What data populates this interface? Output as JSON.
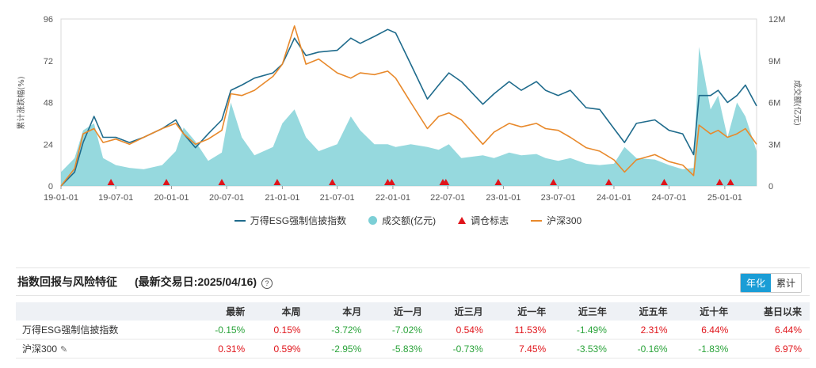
{
  "chart_data": {
    "type": "line",
    "x_ticks": [
      "19-01-01",
      "19-07-01",
      "20-01-01",
      "20-07-01",
      "21-01-01",
      "21-07-01",
      "22-01-01",
      "22-07-01",
      "23-01-01",
      "23-07-01",
      "24-01-01",
      "24-07-01",
      "25-01-01"
    ],
    "y_left_ticks": [
      "0",
      "24",
      "48",
      "72",
      "96"
    ],
    "y_left_range": [
      0,
      96
    ],
    "y_left_label": "累计涨跌幅(%)",
    "y_right_ticks": [
      "0",
      "3M",
      "6M",
      "9M",
      "12M"
    ],
    "y_right_range": [
      0,
      12
    ],
    "y_right_label": "成交额(亿元)",
    "x_range": [
      "2019-01-01",
      "2025-04-16"
    ],
    "series": [
      {
        "name": "万得ESG强制信披指数",
        "kind": "line",
        "color": "#1f6b8c",
        "points": [
          [
            "2019-01-01",
            0
          ],
          [
            "2019-02-15",
            8
          ],
          [
            "2019-03-15",
            25
          ],
          [
            "2019-04-20",
            40
          ],
          [
            "2019-05-20",
            28
          ],
          [
            "2019-07-01",
            28
          ],
          [
            "2019-08-15",
            25
          ],
          [
            "2019-10-01",
            28
          ],
          [
            "2019-12-01",
            33
          ],
          [
            "2020-01-15",
            38
          ],
          [
            "2020-02-10",
            30
          ],
          [
            "2020-03-20",
            22
          ],
          [
            "2020-05-01",
            30
          ],
          [
            "2020-06-15",
            38
          ],
          [
            "2020-07-15",
            55
          ],
          [
            "2020-08-20",
            58
          ],
          [
            "2020-10-01",
            62
          ],
          [
            "2020-12-01",
            65
          ],
          [
            "2021-01-01",
            70
          ],
          [
            "2021-02-10",
            85
          ],
          [
            "2021-03-20",
            75
          ],
          [
            "2021-05-01",
            77
          ],
          [
            "2021-07-01",
            78
          ],
          [
            "2021-08-15",
            85
          ],
          [
            "2021-09-15",
            82
          ],
          [
            "2021-11-01",
            86
          ],
          [
            "2021-12-15",
            90
          ],
          [
            "2022-01-10",
            88
          ],
          [
            "2022-03-01",
            70
          ],
          [
            "2022-04-25",
            50
          ],
          [
            "2022-06-01",
            58
          ],
          [
            "2022-07-05",
            65
          ],
          [
            "2022-08-15",
            60
          ],
          [
            "2022-10-25",
            47
          ],
          [
            "2022-12-01",
            53
          ],
          [
            "2023-01-20",
            60
          ],
          [
            "2023-03-01",
            55
          ],
          [
            "2023-04-20",
            60
          ],
          [
            "2023-05-20",
            55
          ],
          [
            "2023-07-01",
            52
          ],
          [
            "2023-08-10",
            55
          ],
          [
            "2023-10-01",
            45
          ],
          [
            "2023-11-15",
            44
          ],
          [
            "2024-01-01",
            33
          ],
          [
            "2024-02-05",
            25
          ],
          [
            "2024-03-15",
            36
          ],
          [
            "2024-05-15",
            38
          ],
          [
            "2024-07-01",
            32
          ],
          [
            "2024-08-15",
            30
          ],
          [
            "2024-09-20",
            18
          ],
          [
            "2024-10-08",
            52
          ],
          [
            "2024-11-15",
            52
          ],
          [
            "2024-12-10",
            55
          ],
          [
            "2025-01-10",
            48
          ],
          [
            "2025-02-10",
            52
          ],
          [
            "2025-03-10",
            58
          ],
          [
            "2025-04-16",
            46
          ]
        ]
      },
      {
        "name": "沪深300",
        "kind": "line",
        "color": "#e8892b",
        "points": [
          [
            "2019-01-01",
            0
          ],
          [
            "2019-02-15",
            10
          ],
          [
            "2019-03-15",
            30
          ],
          [
            "2019-04-20",
            33
          ],
          [
            "2019-05-20",
            25
          ],
          [
            "2019-07-01",
            27
          ],
          [
            "2019-08-15",
            24
          ],
          [
            "2019-10-01",
            28
          ],
          [
            "2019-12-01",
            33
          ],
          [
            "2020-01-15",
            36
          ],
          [
            "2020-02-10",
            30
          ],
          [
            "2020-03-20",
            24
          ],
          [
            "2020-05-01",
            27
          ],
          [
            "2020-06-15",
            32
          ],
          [
            "2020-07-15",
            53
          ],
          [
            "2020-08-20",
            52
          ],
          [
            "2020-10-01",
            55
          ],
          [
            "2020-12-01",
            63
          ],
          [
            "2021-01-01",
            70
          ],
          [
            "2021-02-10",
            92
          ],
          [
            "2021-03-20",
            70
          ],
          [
            "2021-05-01",
            73
          ],
          [
            "2021-07-01",
            65
          ],
          [
            "2021-08-15",
            62
          ],
          [
            "2021-09-15",
            65
          ],
          [
            "2021-11-01",
            64
          ],
          [
            "2021-12-15",
            66
          ],
          [
            "2022-01-10",
            62
          ],
          [
            "2022-03-01",
            48
          ],
          [
            "2022-04-25",
            33
          ],
          [
            "2022-06-01",
            40
          ],
          [
            "2022-07-05",
            42
          ],
          [
            "2022-08-15",
            38
          ],
          [
            "2022-10-25",
            24
          ],
          [
            "2022-12-01",
            31
          ],
          [
            "2023-01-20",
            36
          ],
          [
            "2023-03-01",
            34
          ],
          [
            "2023-04-20",
            36
          ],
          [
            "2023-05-20",
            33
          ],
          [
            "2023-07-01",
            32
          ],
          [
            "2023-08-10",
            28
          ],
          [
            "2023-10-01",
            22
          ],
          [
            "2023-11-15",
            20
          ],
          [
            "2024-01-01",
            15
          ],
          [
            "2024-02-05",
            8
          ],
          [
            "2024-03-15",
            15
          ],
          [
            "2024-05-15",
            18
          ],
          [
            "2024-07-01",
            14
          ],
          [
            "2024-08-15",
            12
          ],
          [
            "2024-09-20",
            6
          ],
          [
            "2024-10-08",
            35
          ],
          [
            "2024-11-15",
            30
          ],
          [
            "2024-12-10",
            32
          ],
          [
            "2025-01-10",
            28
          ],
          [
            "2025-02-10",
            30
          ],
          [
            "2025-03-10",
            33
          ],
          [
            "2025-04-16",
            24
          ]
        ]
      },
      {
        "name": "成交额(亿元)",
        "kind": "area",
        "axis": "right",
        "color": "#7ccfd6",
        "points": [
          [
            "2019-01-01",
            1.0
          ],
          [
            "2019-02-15",
            2.0
          ],
          [
            "2019-03-15",
            4.0
          ],
          [
            "2019-04-20",
            4.5
          ],
          [
            "2019-05-20",
            2.0
          ],
          [
            "2019-07-01",
            1.5
          ],
          [
            "2019-08-15",
            1.3
          ],
          [
            "2019-10-01",
            1.2
          ],
          [
            "2019-12-01",
            1.5
          ],
          [
            "2020-01-15",
            2.5
          ],
          [
            "2020-02-10",
            4.2
          ],
          [
            "2020-03-20",
            3.2
          ],
          [
            "2020-05-01",
            1.8
          ],
          [
            "2020-06-15",
            2.4
          ],
          [
            "2020-07-15",
            6.0
          ],
          [
            "2020-08-20",
            3.5
          ],
          [
            "2020-10-01",
            2.2
          ],
          [
            "2020-12-01",
            2.8
          ],
          [
            "2021-01-01",
            4.5
          ],
          [
            "2021-02-10",
            5.5
          ],
          [
            "2021-03-20",
            3.5
          ],
          [
            "2021-05-01",
            2.5
          ],
          [
            "2021-07-01",
            3.0
          ],
          [
            "2021-08-15",
            5.0
          ],
          [
            "2021-09-15",
            4.0
          ],
          [
            "2021-11-01",
            3.0
          ],
          [
            "2021-12-15",
            3.0
          ],
          [
            "2022-01-10",
            2.8
          ],
          [
            "2022-03-01",
            3.0
          ],
          [
            "2022-04-25",
            2.8
          ],
          [
            "2022-06-01",
            2.6
          ],
          [
            "2022-07-05",
            3.0
          ],
          [
            "2022-08-15",
            2.0
          ],
          [
            "2022-10-25",
            2.2
          ],
          [
            "2022-12-01",
            2.0
          ],
          [
            "2023-01-20",
            2.4
          ],
          [
            "2023-03-01",
            2.2
          ],
          [
            "2023-04-20",
            2.3
          ],
          [
            "2023-05-20",
            2.0
          ],
          [
            "2023-07-01",
            1.8
          ],
          [
            "2023-08-10",
            2.0
          ],
          [
            "2023-10-01",
            1.6
          ],
          [
            "2023-11-15",
            1.5
          ],
          [
            "2024-01-01",
            1.6
          ],
          [
            "2024-02-05",
            2.8
          ],
          [
            "2024-03-15",
            2.0
          ],
          [
            "2024-05-15",
            1.9
          ],
          [
            "2024-07-01",
            1.5
          ],
          [
            "2024-08-15",
            1.2
          ],
          [
            "2024-09-20",
            1.3
          ],
          [
            "2024-10-08",
            10.0
          ],
          [
            "2024-11-15",
            5.5
          ],
          [
            "2024-12-10",
            6.5
          ],
          [
            "2025-01-10",
            3.5
          ],
          [
            "2025-02-10",
            6.0
          ],
          [
            "2025-03-10",
            5.0
          ],
          [
            "2025-04-16",
            2.5
          ]
        ]
      }
    ],
    "rebalance_markers": {
      "name": "调仓标志",
      "color": "#e0141a",
      "dates": [
        "2019-06-15",
        "2019-12-15",
        "2020-06-15",
        "2020-12-15",
        "2021-06-15",
        "2021-12-15",
        "2021-12-28",
        "2022-06-15",
        "2022-06-25",
        "2022-12-15",
        "2023-06-15",
        "2023-12-15",
        "2024-06-15",
        "2024-12-15",
        "2025-01-20"
      ]
    }
  },
  "legend": [
    {
      "label": "万得ESG强制信披指数",
      "type": "line",
      "color": "#1f6b8c"
    },
    {
      "label": "成交额(亿元)",
      "type": "dot",
      "color": "#7ccfd6"
    },
    {
      "label": "调仓标志",
      "type": "triangle",
      "color": "#e0141a"
    },
    {
      "label": "沪深300",
      "type": "line",
      "color": "#e8892b"
    }
  ],
  "panel": {
    "title": "指数回报与风险特征",
    "subtitle": "(最新交易日:2025/04/16)",
    "help": "?",
    "toggle_active": "年化",
    "toggle_inactive": "累计"
  },
  "table": {
    "headers": [
      "",
      "最新",
      "本周",
      "本月",
      "近一月",
      "近三月",
      "近一年",
      "近三年",
      "近五年",
      "近十年",
      "基日以来"
    ],
    "rows": [
      {
        "name": "万得ESG强制信披指数",
        "values": [
          "-0.15%",
          "0.15%",
          "-3.72%",
          "-7.02%",
          "0.54%",
          "11.53%",
          "-1.49%",
          "2.31%",
          "6.44%",
          "6.44%"
        ]
      },
      {
        "name": "沪深300",
        "values": [
          "0.31%",
          "0.59%",
          "-2.95%",
          "-5.83%",
          "-0.73%",
          "7.45%",
          "-3.53%",
          "-0.16%",
          "-1.83%",
          "6.97%"
        ]
      }
    ]
  }
}
